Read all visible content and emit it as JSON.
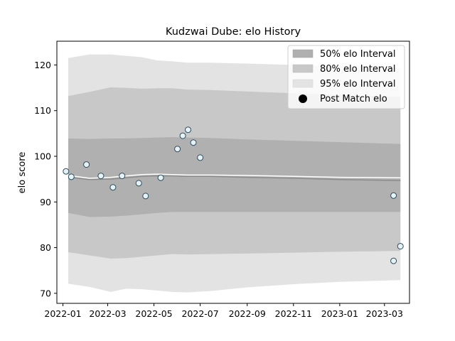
{
  "chart_data": {
    "type": "scatter",
    "title": "Kudzwai Dube: elo History",
    "xlabel": "",
    "ylabel": "elo score",
    "xlim": [
      "2021-12-24",
      "2023-04-03"
    ],
    "ylim": [
      67.8,
      125.2
    ],
    "x_ticks": [
      "2022-01",
      "2022-03",
      "2022-05",
      "2022-07",
      "2022-09",
      "2022-11",
      "2023-01",
      "2023-03"
    ],
    "y_ticks": [
      70,
      80,
      90,
      100,
      110,
      120
    ],
    "legend_position": "top-right",
    "legend": {
      "band50": "50% elo Interval",
      "band80": "80% elo Interval",
      "band95": "95% elo Interval",
      "points": "Post Match elo"
    },
    "colors": {
      "band50": "#b0b0b0",
      "band80": "#c8c8c8",
      "band95": "#e3e3e3",
      "mean_line": "#ffffff",
      "median_line": "#8c8c8c",
      "point_fill": "#e6f2f7",
      "point_edge": "#2b4d5c"
    },
    "bands": {
      "x": [
        "2022-01-08",
        "2022-02-05",
        "2022-03-05",
        "2022-03-25",
        "2022-04-15",
        "2022-05-05",
        "2022-05-25",
        "2022-06-14",
        "2022-07-15",
        "2022-09-01",
        "2022-11-01",
        "2023-01-01",
        "2023-03-22"
      ],
      "p95_high": [
        121.5,
        122.3,
        122.3,
        122.0,
        121.7,
        121.0,
        120.8,
        120.5,
        120.5,
        120.3,
        120.0,
        119.8,
        119.3
      ],
      "p80_high": [
        113.2,
        114.1,
        115.1,
        115.0,
        114.8,
        114.9,
        114.9,
        114.6,
        114.5,
        114.2,
        113.8,
        113.5,
        113.0
      ],
      "p50_high": [
        103.9,
        103.8,
        103.9,
        103.9,
        104.0,
        104.1,
        104.2,
        104.1,
        104.0,
        103.7,
        103.4,
        103.1,
        102.7
      ],
      "p50_low": [
        87.6,
        86.7,
        86.8,
        87.0,
        87.3,
        87.6,
        87.8,
        87.8,
        87.8,
        87.8,
        87.8,
        87.8,
        87.8
      ],
      "p80_low": [
        79.0,
        78.3,
        77.6,
        77.7,
        78.0,
        78.3,
        78.6,
        78.5,
        78.6,
        78.7,
        78.9,
        79.1,
        79.3
      ],
      "p95_low": [
        72.1,
        71.4,
        70.3,
        71.0,
        70.9,
        70.6,
        70.3,
        70.2,
        70.5,
        71.3,
        72.0,
        72.5,
        72.9
      ],
      "mean": [
        95.8,
        95.2,
        95.4,
        95.7,
        96.0,
        96.1,
        96.0,
        95.9,
        95.9,
        95.8,
        95.6,
        95.4,
        95.3
      ],
      "median": [
        95.4,
        94.9,
        95.0,
        95.3,
        95.6,
        95.7,
        95.7,
        95.6,
        95.6,
        95.4,
        95.2,
        94.9,
        94.7
      ]
    },
    "points": {
      "x": [
        "2022-01-05",
        "2022-01-12",
        "2022-02-01",
        "2022-02-20",
        "2022-03-08",
        "2022-03-20",
        "2022-04-11",
        "2022-04-20",
        "2022-05-10",
        "2022-06-01",
        "2022-06-08",
        "2022-06-15",
        "2022-06-22",
        "2022-07-01",
        "2023-03-13",
        "2023-03-13",
        "2023-03-22"
      ],
      "y": [
        96.7,
        95.5,
        98.2,
        95.7,
        93.2,
        95.7,
        94.1,
        91.3,
        95.3,
        101.6,
        104.5,
        105.8,
        103.0,
        99.7,
        91.4,
        77.1,
        80.3
      ]
    }
  }
}
